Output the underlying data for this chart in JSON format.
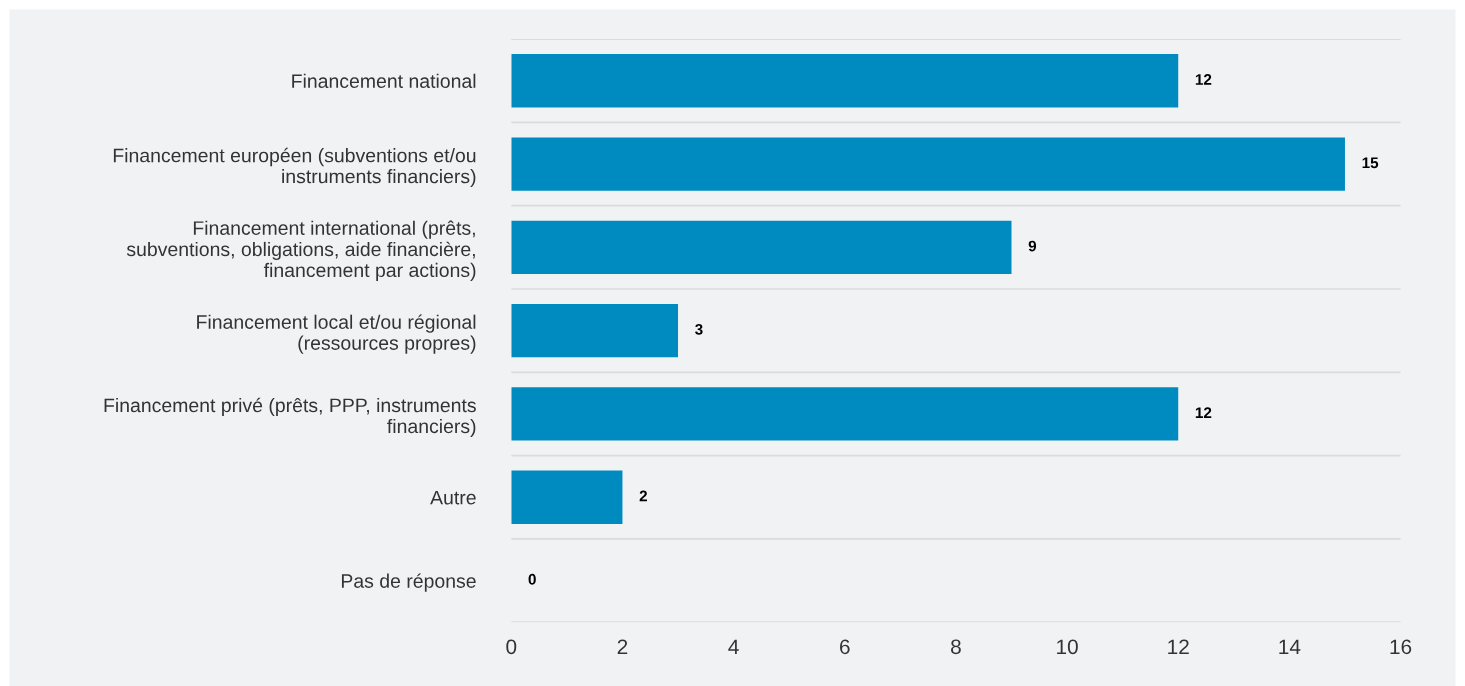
{
  "chart_data": {
    "type": "bar",
    "orientation": "horizontal",
    "categories": [
      "Financement national",
      "Financement européen (subventions et/ou\ninstruments financiers)",
      "Financement international (prêts,\nsubventions, obligations, aide financière,\nfinancement par actions)",
      "Financement local et/ou régional\n(ressources propres)",
      "Financement privé (prêts, PPP, instruments\nfinanciers)",
      "Autre",
      "Pas de réponse"
    ],
    "values": [
      12,
      15,
      9,
      3,
      12,
      2,
      0
    ],
    "color": "#008bc0",
    "xlim": [
      0,
      16
    ],
    "xticks": [
      0,
      2,
      4,
      6,
      8,
      10,
      12,
      14,
      16
    ],
    "grid": "y",
    "data_labels": true
  }
}
